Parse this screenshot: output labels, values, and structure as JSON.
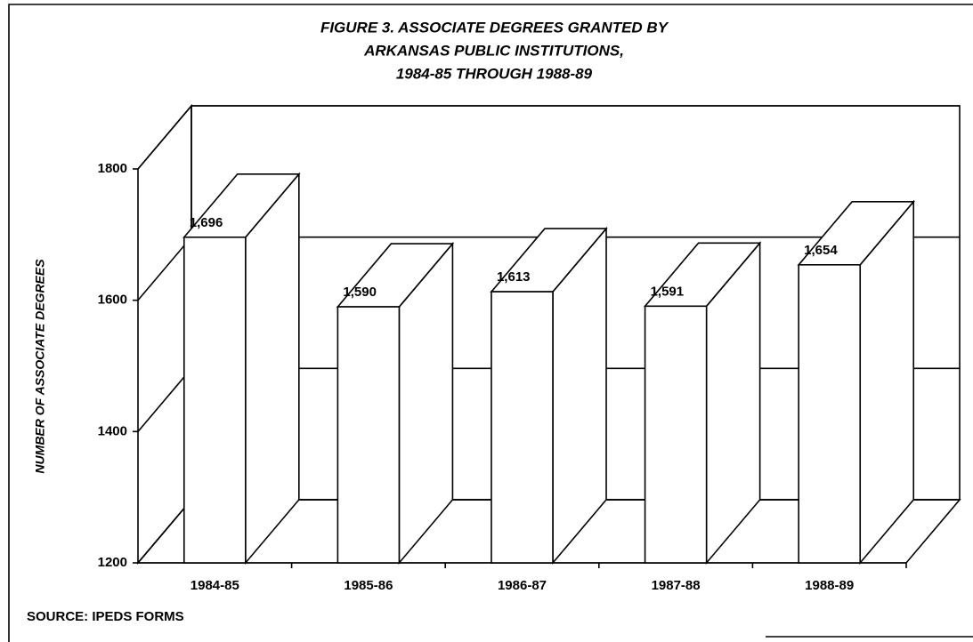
{
  "chart_data": {
    "type": "bar3d",
    "title": [
      "FIGURE 3. ASSOCIATE DEGREES GRANTED BY",
      "ARKANSAS PUBLIC INSTITUTIONS,",
      "1984-85 THROUGH 1988-89"
    ],
    "y_label": "NUMBER OF ASSOCIATE DEGREES",
    "source": "SOURCE:  IPEDS FORMS",
    "categories": [
      "1984-85",
      "1985-86",
      "1986-87",
      "1987-88",
      "1988-89"
    ],
    "values": [
      1696,
      1590,
      1613,
      1591,
      1654
    ],
    "value_labels": [
      "1,696",
      "1,590",
      "1,613",
      "1,591",
      "1,654"
    ],
    "color": "#ffffff",
    "ylim": [
      1200,
      1800
    ],
    "yticks": [
      1200,
      1400,
      1600,
      1800
    ],
    "grid": true
  }
}
